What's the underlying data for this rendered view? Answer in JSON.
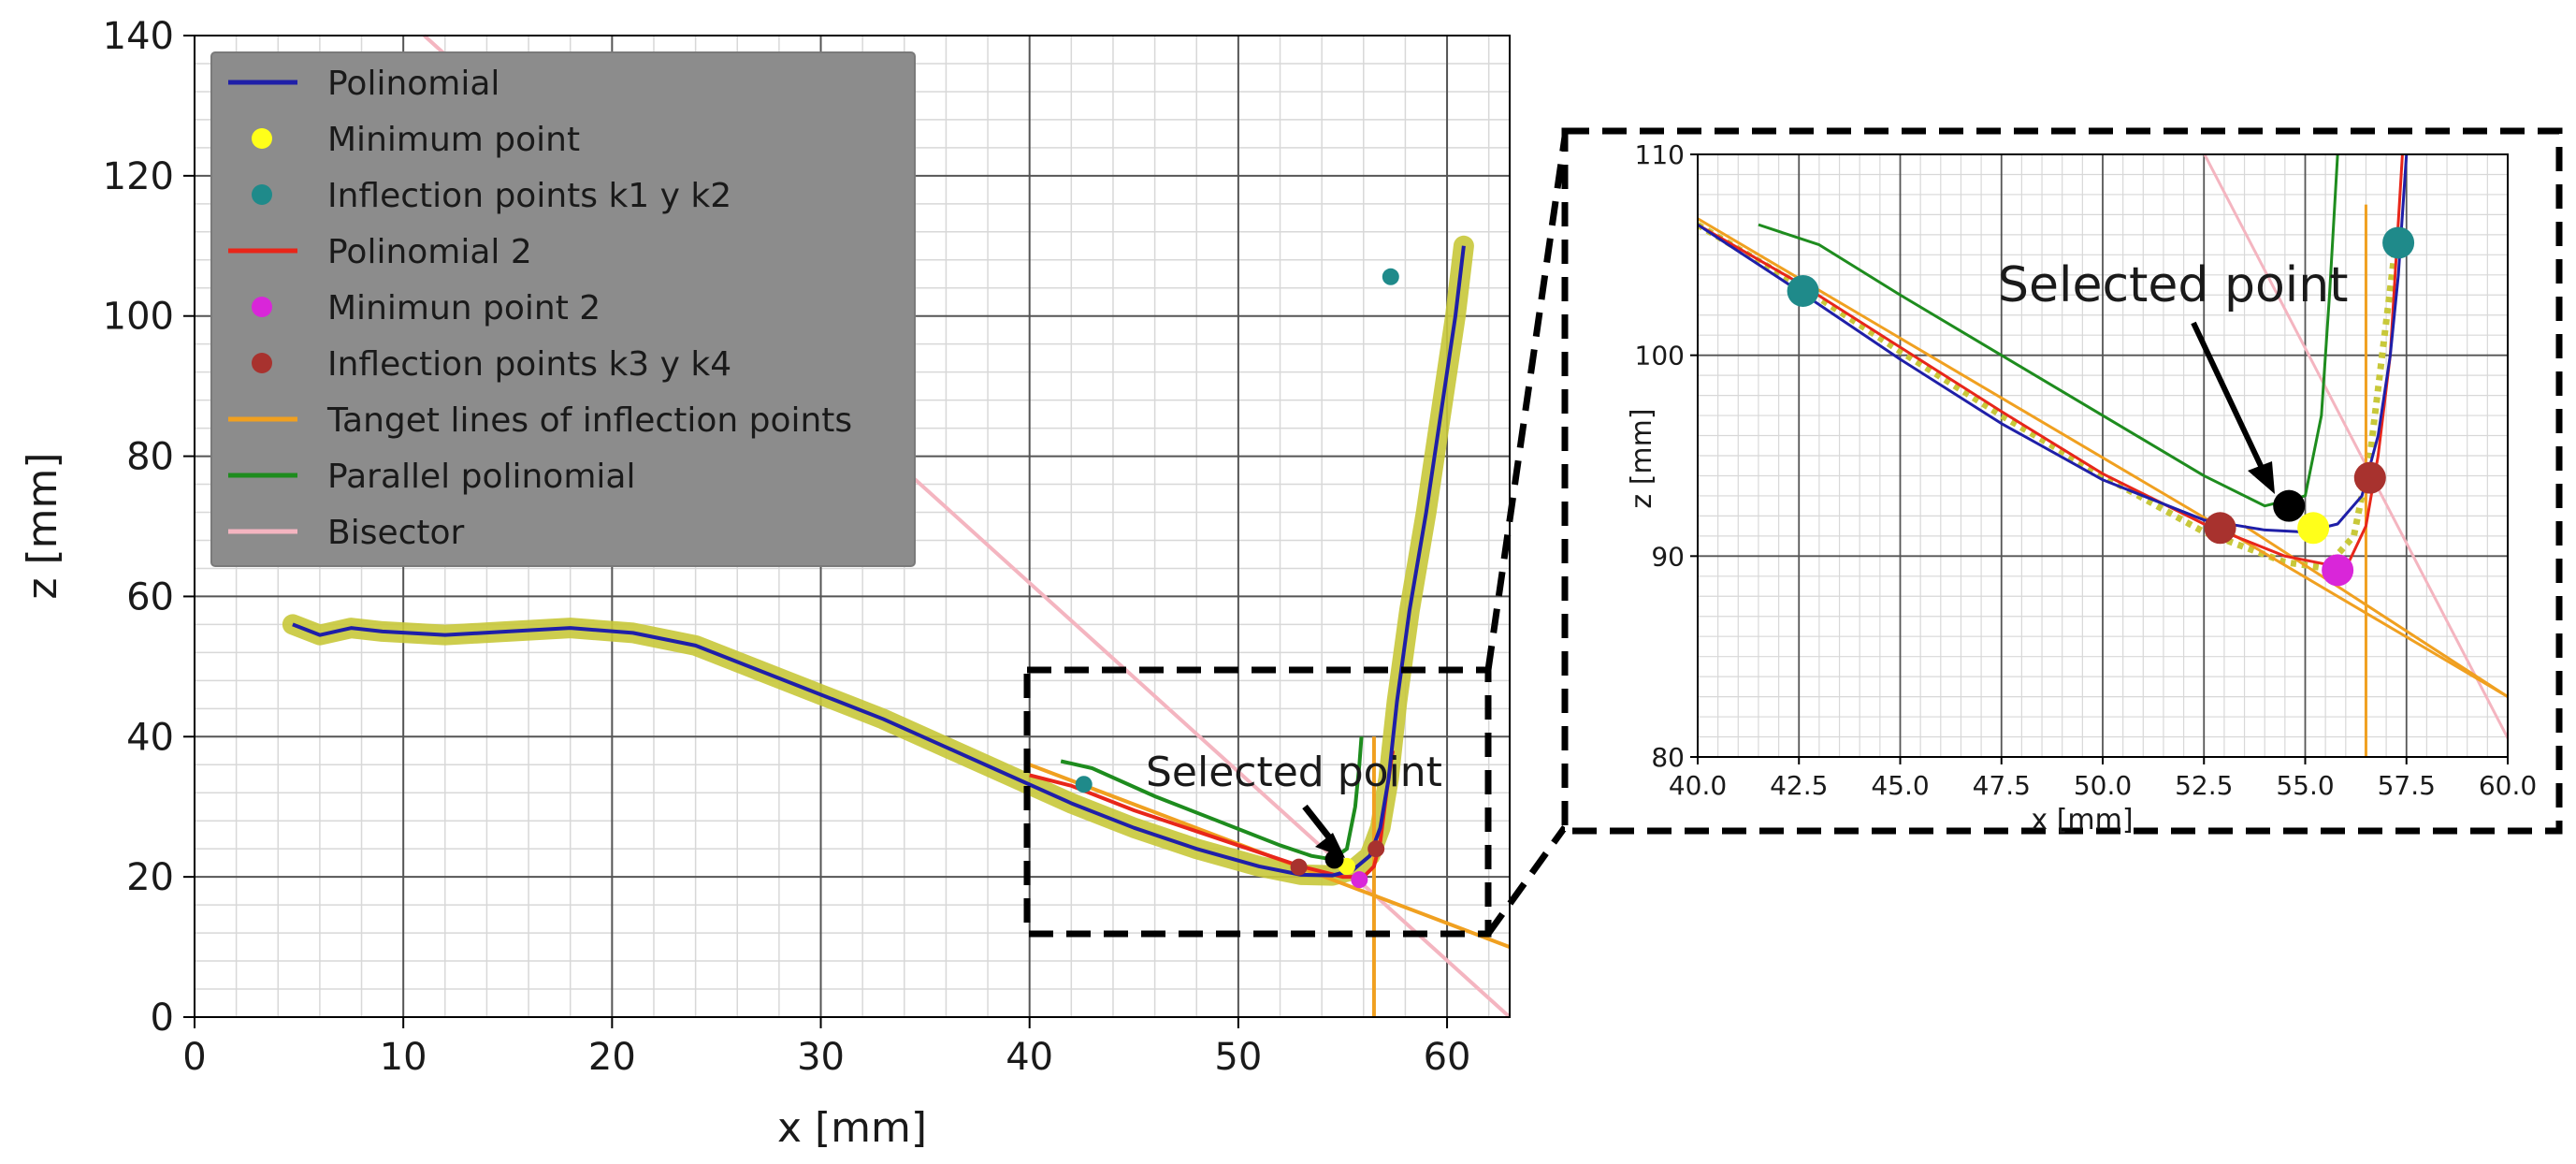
{
  "chart_data": [
    {
      "type": "line",
      "panel": "main",
      "xlabel": "x [mm]",
      "ylabel": "z [mm]",
      "xlim": [
        0,
        63
      ],
      "ylim": [
        0,
        140
      ],
      "x_ticks": [
        "0",
        "10",
        "20",
        "30",
        "40",
        "50",
        "60"
      ],
      "y_ticks": [
        "0",
        "20",
        "40",
        "60",
        "80",
        "100",
        "120",
        "140"
      ],
      "grid": "major and minor",
      "legend_position": "top-left",
      "annotation": "Selected point",
      "selected_point": {
        "x": 54.6,
        "y": 22.5
      },
      "series": [
        {
          "name": "Polinomial",
          "color": "#1f1fa8",
          "style": "line",
          "x": [
            4.7,
            6,
            7.5,
            9,
            12,
            15,
            18,
            21,
            24,
            27,
            30,
            33,
            36,
            39,
            42,
            45,
            48,
            51,
            53,
            54.5,
            55.5,
            56.3,
            56.8,
            57.2,
            57.6,
            58.2,
            59,
            59.8,
            60.4,
            60.8
          ],
          "y": [
            56,
            54.5,
            55.5,
            55,
            54.5,
            55,
            55.5,
            54.8,
            53,
            49.5,
            46,
            42.5,
            38.5,
            34.5,
            30.5,
            27,
            24,
            21.5,
            20.3,
            20.2,
            21,
            23,
            27,
            34,
            45,
            58,
            72,
            88,
            100,
            110
          ]
        },
        {
          "name": "Minimum point",
          "color": "#ffff1a",
          "style": "marker",
          "x": [
            55.2
          ],
          "y": [
            21.5
          ]
        },
        {
          "name": "Inflection points k1 y k2",
          "color": "#1f8a8a",
          "style": "marker",
          "x": [
            42.6,
            57.3
          ],
          "y": [
            33.2,
            105.6
          ]
        },
        {
          "name": "Polinomial 2",
          "color": "#e8261a",
          "style": "line",
          "x": [
            40,
            42,
            45,
            48,
            51,
            53,
            55,
            56,
            56.5,
            56.8,
            57.1,
            57.4
          ],
          "y": [
            34.5,
            33,
            29.5,
            26.5,
            23.5,
            21.5,
            20,
            20,
            21.5,
            25,
            32,
            38
          ]
        },
        {
          "name": "Minimun point 2",
          "color": "#d926d9",
          "style": "marker",
          "x": [
            55.8
          ],
          "y": [
            19.6
          ]
        },
        {
          "name": "Inflection points k3 y k4",
          "color": "#a8322e",
          "style": "marker",
          "x": [
            52.9,
            56.6
          ],
          "y": [
            21.4,
            24
          ]
        },
        {
          "name": "Tanget lines of inflection points",
          "color": "#f0a020",
          "style": "line",
          "lines": [
            {
              "x": [
                40,
                63
              ],
              "y": [
                36,
                10
              ]
            },
            {
              "x": [
                56.5,
                56.5
              ],
              "y": [
                0,
                40
              ]
            }
          ]
        },
        {
          "name": "Parallel polinomial",
          "color": "#1e8c1e",
          "style": "line",
          "x": [
            41.5,
            43,
            46,
            49,
            52,
            53.5,
            54.5,
            55.2,
            55.6,
            55.8,
            55.9
          ],
          "y": [
            36.5,
            35.5,
            31.5,
            28,
            24.5,
            23,
            22.5,
            24,
            30,
            36,
            40
          ]
        },
        {
          "name": "Bisector",
          "color": "#f4b5c0",
          "style": "line",
          "x": [
            11,
            63
          ],
          "y": [
            140,
            0
          ]
        }
      ]
    },
    {
      "type": "line",
      "panel": "zoom inset",
      "xlabel": "x [mm]",
      "ylabel": "z [mm]",
      "xlim": [
        40,
        60
      ],
      "ylim": [
        80,
        110
      ],
      "x_ticks": [
        "40.0",
        "42.5",
        "45.0",
        "47.5",
        "50.0",
        "52.5",
        "55.0",
        "57.5",
        "60.0"
      ],
      "y_ticks": [
        "80",
        "90",
        "100",
        "110"
      ],
      "grid": "major and minor",
      "annotation": "Selected point"
    }
  ]
}
